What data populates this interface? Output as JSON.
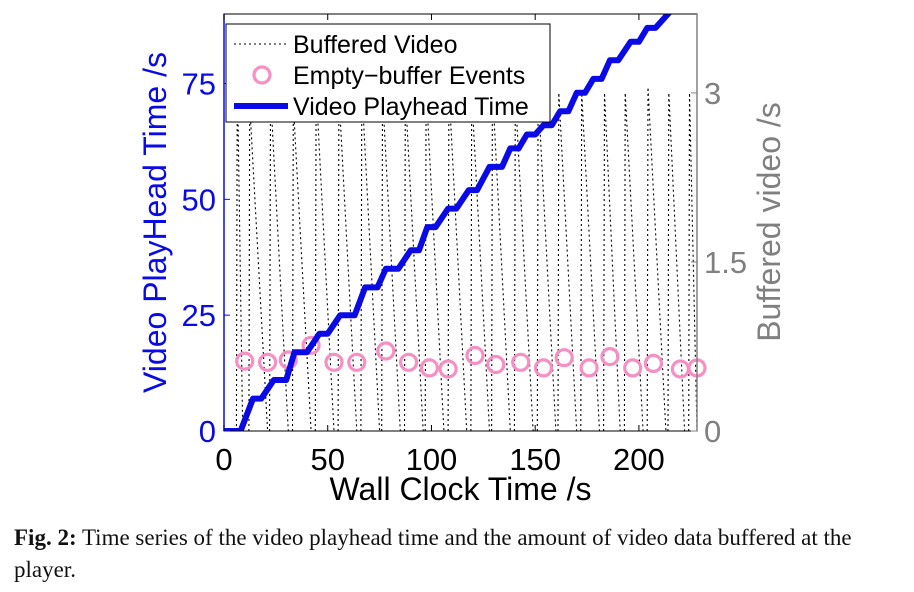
{
  "caption": {
    "label": "Fig. 2:",
    "text": " Time series of the video playhead time and the amount of video data buffered at the player."
  },
  "chart_data": {
    "type": "line",
    "xlabel": "Wall Clock Time /s",
    "ylabel_left": "Video PlayHead Time /s",
    "ylabel_right": "Buffered video /s",
    "xlim": [
      0,
      228
    ],
    "ylim_left": [
      0,
      90
    ],
    "ylim_right": [
      0,
      3.7
    ],
    "xticks": [
      0,
      50,
      100,
      150,
      200
    ],
    "xtick_labels": [
      "0",
      "50",
      "100",
      "150",
      "200"
    ],
    "yticks_left": [
      0,
      25,
      50,
      75
    ],
    "ytick_labels_left": [
      "0",
      "25",
      "50",
      "75"
    ],
    "yticks_right": [
      0,
      1.5,
      3
    ],
    "ytick_labels_right": [
      "0",
      "1.5",
      "3"
    ],
    "grid": false,
    "legend_position": "top-left",
    "colors": {
      "left_axis": "#0a0ae6",
      "right_axis": "#808080",
      "playhead": "#0a0ae6",
      "buffered": "#000000",
      "events": "#f58fc4"
    },
    "series": [
      {
        "name": "Buffered Video",
        "axis": "right",
        "style": "dotted",
        "cycles": [
          {
            "start": 6,
            "end": 9,
            "peak": 3.2
          },
          {
            "start": 12,
            "end": 21,
            "peak": 2.9
          },
          {
            "start": 22,
            "end": 31,
            "peak": 3.0
          },
          {
            "start": 33,
            "end": 42,
            "peak": 2.9
          },
          {
            "start": 44,
            "end": 53,
            "peak": 3.05
          },
          {
            "start": 55,
            "end": 64,
            "peak": 3.0
          },
          {
            "start": 66,
            "end": 75,
            "peak": 3.05
          },
          {
            "start": 76,
            "end": 85,
            "peak": 3.0
          },
          {
            "start": 87,
            "end": 96,
            "peak": 3.0
          },
          {
            "start": 97,
            "end": 106,
            "peak": 3.05
          },
          {
            "start": 108,
            "end": 117,
            "peak": 3.05
          },
          {
            "start": 119,
            "end": 128,
            "peak": 3.0
          },
          {
            "start": 129,
            "end": 138,
            "peak": 3.05
          },
          {
            "start": 140,
            "end": 149,
            "peak": 3.0
          },
          {
            "start": 151,
            "end": 160,
            "peak": 3.0
          },
          {
            "start": 161,
            "end": 170,
            "peak": 3.0
          },
          {
            "start": 172,
            "end": 181,
            "peak": 3.0
          },
          {
            "start": 183,
            "end": 191,
            "peak": 3.0
          },
          {
            "start": 193,
            "end": 202,
            "peak": 3.0
          },
          {
            "start": 204,
            "end": 213,
            "peak": 3.05
          },
          {
            "start": 214,
            "end": 222,
            "peak": 3.0
          },
          {
            "start": 224,
            "end": 228,
            "peak": 3.0
          }
        ]
      },
      {
        "name": "Empty−buffer Events",
        "axis": "right",
        "marker": "circle",
        "x": [
          10,
          21,
          31,
          42,
          53,
          64,
          78,
          89,
          99,
          108,
          121,
          131,
          143,
          154,
          164,
          176,
          186,
          197,
          207,
          220,
          228
        ],
        "y": [
          0.62,
          0.61,
          0.63,
          0.76,
          0.61,
          0.61,
          0.71,
          0.61,
          0.56,
          0.55,
          0.67,
          0.59,
          0.61,
          0.56,
          0.65,
          0.56,
          0.66,
          0.56,
          0.6,
          0.55,
          0.56
        ]
      },
      {
        "name": "Video Playhead Time",
        "axis": "left",
        "style": "solid",
        "x": [
          0,
          8,
          14,
          18,
          24,
          30,
          34,
          40,
          46,
          50,
          56,
          63,
          68,
          74,
          78,
          84,
          90,
          94,
          98,
          102,
          108,
          112,
          118,
          122,
          128,
          134,
          138,
          142,
          146,
          150,
          154,
          158,
          162,
          166,
          170,
          174,
          178,
          182,
          186,
          190,
          196,
          200,
          204,
          208,
          216,
          228
        ],
        "y": [
          0,
          0,
          7,
          7,
          11,
          11,
          17,
          17,
          21,
          21,
          25,
          25,
          31,
          31,
          35,
          35,
          39,
          39,
          44,
          44,
          48,
          48,
          52,
          52,
          57,
          57,
          61,
          61,
          64,
          64,
          66,
          66,
          69,
          69,
          73,
          73,
          76,
          76,
          80,
          80,
          84,
          84,
          87,
          87,
          91,
          103
        ]
      }
    ]
  }
}
